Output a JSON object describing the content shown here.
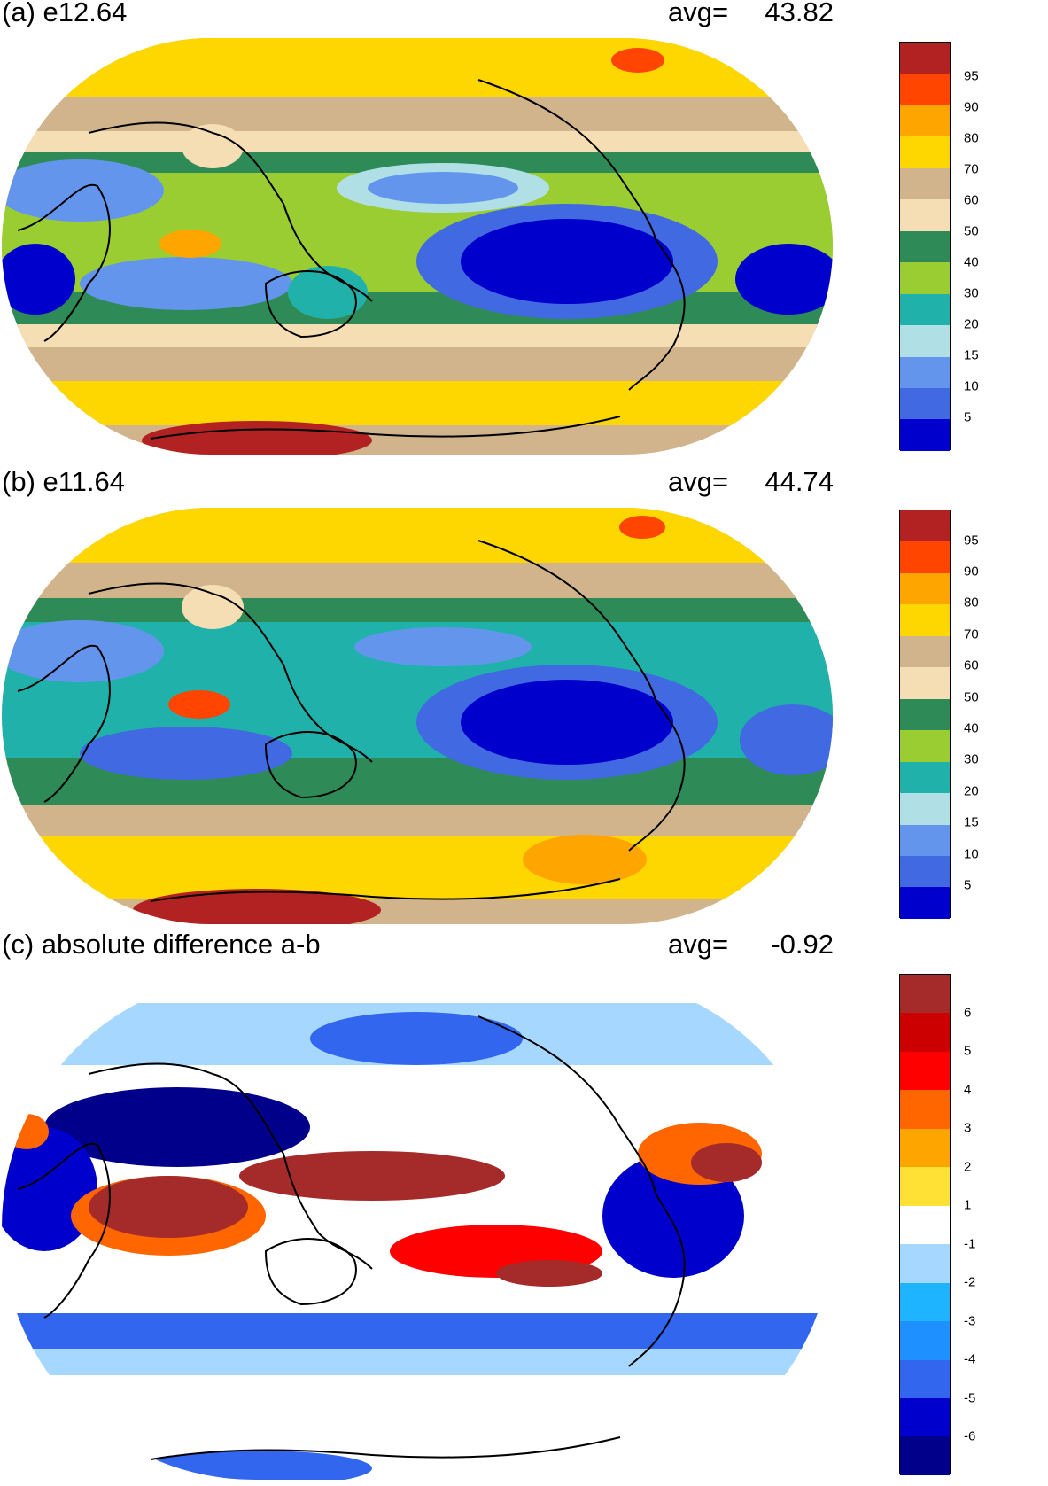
{
  "panels": [
    {
      "title": "(a) e12.64",
      "avg_label": "avg=",
      "avg_value": "43.82",
      "colorbar": {
        "labels": [
          "95",
          "90",
          "80",
          "70",
          "60",
          "50",
          "40",
          "30",
          "20",
          "15",
          "10",
          "5"
        ],
        "colors": [
          "#b22222",
          "#ff4500",
          "#ffa500",
          "#ffd700",
          "#d2b48c",
          "#f5deb3",
          "#2e8b57",
          "#9acd32",
          "#20b2aa",
          "#b0e0e6",
          "#6495ed",
          "#4169e1",
          "#0000cd"
        ]
      }
    },
    {
      "title": "(b) e11.64",
      "avg_label": "avg=",
      "avg_value": "44.74",
      "colorbar": {
        "labels": [
          "95",
          "90",
          "80",
          "70",
          "60",
          "50",
          "40",
          "30",
          "20",
          "15",
          "10",
          "5"
        ],
        "colors": [
          "#b22222",
          "#ff4500",
          "#ffa500",
          "#ffd700",
          "#d2b48c",
          "#f5deb3",
          "#2e8b57",
          "#9acd32",
          "#20b2aa",
          "#b0e0e6",
          "#6495ed",
          "#4169e1",
          "#0000cd"
        ]
      }
    },
    {
      "title": "(c) absolute difference a-b",
      "avg_label": "avg=",
      "avg_value": "-0.92",
      "colorbar": {
        "labels": [
          "6",
          "5",
          "4",
          "3",
          "2",
          "1",
          "-1",
          "-2",
          "-3",
          "-4",
          "-5",
          "-6"
        ],
        "colors": [
          "#a52a2a",
          "#cd0000",
          "#ff0000",
          "#ff6600",
          "#ffa500",
          "#ffe135",
          "#ffffff",
          "#a6d8ff",
          "#1eb4ff",
          "#1e90ff",
          "#3366ee",
          "#0000cd",
          "#00008b"
        ]
      }
    }
  ]
}
